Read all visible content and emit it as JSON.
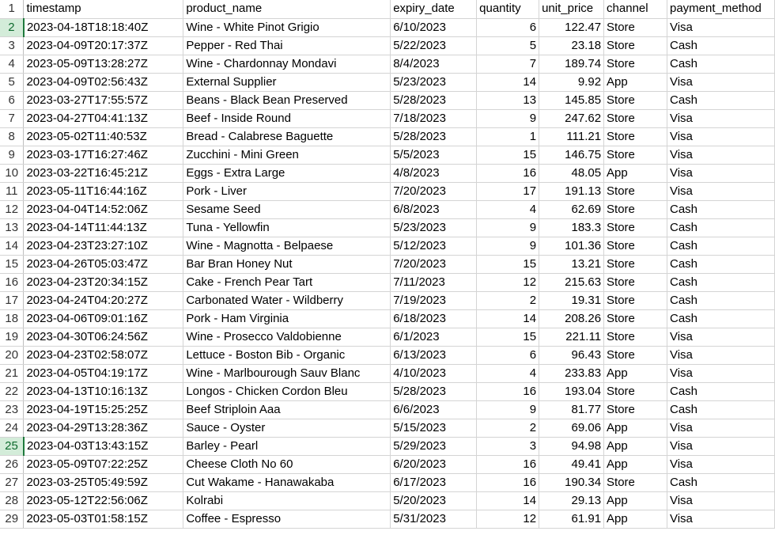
{
  "headers": [
    "timestamp",
    "product_name",
    "expiry_date",
    "quantity",
    "unit_price",
    "channel",
    "payment_method"
  ],
  "row_numbers": [
    "1",
    "2",
    "3",
    "4",
    "5",
    "6",
    "7",
    "8",
    "9",
    "10",
    "11",
    "12",
    "13",
    "14",
    "15",
    "16",
    "17",
    "18",
    "19",
    "20",
    "21",
    "22",
    "23",
    "24",
    "25",
    "26",
    "27",
    "28",
    "29"
  ],
  "selected_row_numbers": [
    "2",
    "25"
  ],
  "rows": [
    [
      "2023-04-18T18:18:40Z",
      "Wine - White Pinot Grigio",
      "6/10/2023",
      "6",
      "122.47",
      "Store",
      "Visa"
    ],
    [
      "2023-04-09T20:17:37Z",
      "Pepper - Red Thai",
      "5/22/2023",
      "5",
      "23.18",
      "Store",
      "Cash"
    ],
    [
      "2023-05-09T13:28:27Z",
      "Wine - Chardonnay Mondavi",
      "8/4/2023",
      "7",
      "189.74",
      "Store",
      "Cash"
    ],
    [
      "2023-04-09T02:56:43Z",
      "External Supplier",
      "5/23/2023",
      "14",
      "9.92",
      "App",
      "Visa"
    ],
    [
      "2023-03-27T17:55:57Z",
      "Beans - Black Bean Preserved",
      "5/28/2023",
      "13",
      "145.85",
      "Store",
      "Cash"
    ],
    [
      "2023-04-27T04:41:13Z",
      "Beef - Inside Round",
      "7/18/2023",
      "9",
      "247.62",
      "Store",
      "Visa"
    ],
    [
      "2023-05-02T11:40:53Z",
      "Bread - Calabrese Baguette",
      "5/28/2023",
      "1",
      "111.21",
      "Store",
      "Visa"
    ],
    [
      "2023-03-17T16:27:46Z",
      "Zucchini - Mini Green",
      "5/5/2023",
      "15",
      "146.75",
      "Store",
      "Visa"
    ],
    [
      "2023-03-22T16:45:21Z",
      "Eggs - Extra Large",
      "4/8/2023",
      "16",
      "48.05",
      "App",
      "Visa"
    ],
    [
      "2023-05-11T16:44:16Z",
      "Pork - Liver",
      "7/20/2023",
      "17",
      "191.13",
      "Store",
      "Visa"
    ],
    [
      "2023-04-04T14:52:06Z",
      "Sesame Seed",
      "6/8/2023",
      "4",
      "62.69",
      "Store",
      "Cash"
    ],
    [
      "2023-04-14T11:44:13Z",
      "Tuna - Yellowfin",
      "5/23/2023",
      "9",
      "183.3",
      "Store",
      "Cash"
    ],
    [
      "2023-04-23T23:27:10Z",
      "Wine - Magnotta - Belpaese",
      "5/12/2023",
      "9",
      "101.36",
      "Store",
      "Cash"
    ],
    [
      "2023-04-26T05:03:47Z",
      "Bar Bran Honey Nut",
      "7/20/2023",
      "15",
      "13.21",
      "Store",
      "Cash"
    ],
    [
      "2023-04-23T20:34:15Z",
      "Cake - French Pear Tart",
      "7/11/2023",
      "12",
      "215.63",
      "Store",
      "Cash"
    ],
    [
      "2023-04-24T04:20:27Z",
      "Carbonated Water - Wildberry",
      "7/19/2023",
      "2",
      "19.31",
      "Store",
      "Cash"
    ],
    [
      "2023-04-06T09:01:16Z",
      "Pork - Ham Virginia",
      "6/18/2023",
      "14",
      "208.26",
      "Store",
      "Cash"
    ],
    [
      "2023-04-30T06:24:56Z",
      "Wine - Prosecco Valdobienne",
      "6/1/2023",
      "15",
      "221.11",
      "Store",
      "Visa"
    ],
    [
      "2023-04-23T02:58:07Z",
      "Lettuce - Boston Bib - Organic",
      "6/13/2023",
      "6",
      "96.43",
      "Store",
      "Visa"
    ],
    [
      "2023-04-05T04:19:17Z",
      "Wine - Marlbourough Sauv Blanc",
      "4/10/2023",
      "4",
      "233.83",
      "App",
      "Visa"
    ],
    [
      "2023-04-13T10:16:13Z",
      "Longos - Chicken Cordon Bleu",
      "5/28/2023",
      "16",
      "193.04",
      "Store",
      "Cash"
    ],
    [
      "2023-04-19T15:25:25Z",
      "Beef Striploin Aaa",
      "6/6/2023",
      "9",
      "81.77",
      "Store",
      "Cash"
    ],
    [
      "2023-04-29T13:28:36Z",
      "Sauce - Oyster",
      "5/15/2023",
      "2",
      "69.06",
      "App",
      "Visa"
    ],
    [
      "2023-04-03T13:43:15Z",
      "Barley - Pearl",
      "5/29/2023",
      "3",
      "94.98",
      "App",
      "Visa"
    ],
    [
      "2023-05-09T07:22:25Z",
      "Cheese Cloth No 60",
      "6/20/2023",
      "16",
      "49.41",
      "App",
      "Visa"
    ],
    [
      "2023-03-25T05:49:59Z",
      "Cut Wakame - Hanawakaba",
      "6/17/2023",
      "16",
      "190.34",
      "Store",
      "Cash"
    ],
    [
      "2023-05-12T22:56:06Z",
      "Kolrabi",
      "5/20/2023",
      "14",
      "29.13",
      "App",
      "Visa"
    ],
    [
      "2023-05-03T01:58:15Z",
      "Coffee - Espresso",
      "5/31/2023",
      "12",
      "61.91",
      "App",
      "Visa"
    ]
  ]
}
